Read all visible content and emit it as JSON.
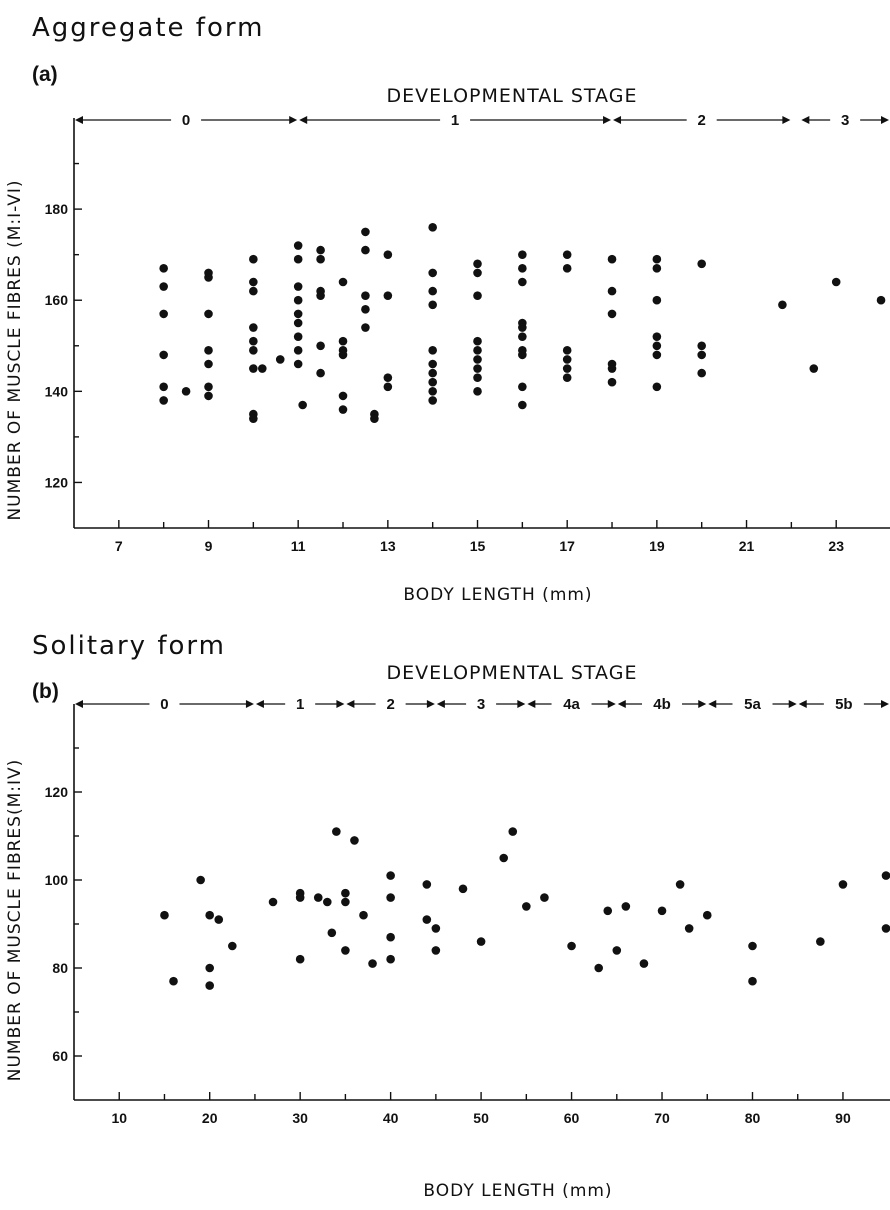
{
  "chart_data": [
    {
      "type": "scatter",
      "form_title": "Aggregate form",
      "panel_label": "(a)",
      "stage_title": "DEVELOPMENTAL STAGE",
      "xlabel": "BODY LENGTH (mm)",
      "ylabel": "NUMBER OF MUSCLE FIBRES (M:I-VI)",
      "xlim": [
        6,
        24.2
      ],
      "ylim": [
        110,
        200
      ],
      "xticks": [
        7,
        9,
        11,
        13,
        15,
        17,
        19,
        21,
        23
      ],
      "yticks": [
        120,
        140,
        160,
        180
      ],
      "grid": false,
      "stages": [
        {
          "label": "0",
          "from": 6,
          "to": 11
        },
        {
          "label": "1",
          "from": 11,
          "to": 18
        },
        {
          "label": "2",
          "from": 18,
          "to": 22
        },
        {
          "label": "3",
          "from": 22.2,
          "to": 24.2
        }
      ],
      "points": [
        [
          8,
          167
        ],
        [
          8,
          163
        ],
        [
          8,
          157
        ],
        [
          8,
          148
        ],
        [
          8,
          141
        ],
        [
          8,
          138
        ],
        [
          8.5,
          140
        ],
        [
          9,
          166
        ],
        [
          9,
          165
        ],
        [
          9,
          157
        ],
        [
          9,
          149
        ],
        [
          9,
          146
        ],
        [
          9,
          141
        ],
        [
          9,
          139
        ],
        [
          10,
          169
        ],
        [
          10,
          164
        ],
        [
          10,
          162
        ],
        [
          10,
          154
        ],
        [
          10,
          151
        ],
        [
          10,
          149
        ],
        [
          10,
          145
        ],
        [
          10,
          135
        ],
        [
          10,
          134
        ],
        [
          10.2,
          145
        ],
        [
          10.6,
          147
        ],
        [
          11,
          172
        ],
        [
          11,
          169
        ],
        [
          11,
          163
        ],
        [
          11,
          160
        ],
        [
          11,
          157
        ],
        [
          11,
          155
        ],
        [
          11,
          152
        ],
        [
          11,
          149
        ],
        [
          11,
          146
        ],
        [
          11.1,
          137
        ],
        [
          11.5,
          171
        ],
        [
          11.5,
          169
        ],
        [
          11.5,
          162
        ],
        [
          11.5,
          161
        ],
        [
          11.5,
          150
        ],
        [
          11.5,
          144
        ],
        [
          12,
          164
        ],
        [
          12,
          151
        ],
        [
          12,
          149
        ],
        [
          12,
          148
        ],
        [
          12,
          139
        ],
        [
          12,
          136
        ],
        [
          12.5,
          175
        ],
        [
          12.5,
          171
        ],
        [
          12.5,
          161
        ],
        [
          12.5,
          158
        ],
        [
          12.5,
          154
        ],
        [
          12.7,
          135
        ],
        [
          12.7,
          134
        ],
        [
          13,
          170
        ],
        [
          13,
          161
        ],
        [
          13,
          143
        ],
        [
          13,
          141
        ],
        [
          14,
          176
        ],
        [
          14,
          166
        ],
        [
          14,
          162
        ],
        [
          14,
          159
        ],
        [
          14,
          149
        ],
        [
          14,
          146
        ],
        [
          14,
          144
        ],
        [
          14,
          142
        ],
        [
          14,
          140
        ],
        [
          14,
          138
        ],
        [
          15,
          168
        ],
        [
          15,
          166
        ],
        [
          15,
          161
        ],
        [
          15,
          151
        ],
        [
          15,
          149
        ],
        [
          15,
          147
        ],
        [
          15,
          145
        ],
        [
          15,
          143
        ],
        [
          15,
          140
        ],
        [
          16,
          170
        ],
        [
          16,
          167
        ],
        [
          16,
          164
        ],
        [
          16,
          155
        ],
        [
          16,
          154
        ],
        [
          16,
          152
        ],
        [
          16,
          149
        ],
        [
          16,
          148
        ],
        [
          16,
          141
        ],
        [
          16,
          137
        ],
        [
          17,
          170
        ],
        [
          17,
          167
        ],
        [
          17,
          149
        ],
        [
          17,
          147
        ],
        [
          17,
          145
        ],
        [
          17,
          143
        ],
        [
          18,
          169
        ],
        [
          18,
          162
        ],
        [
          18,
          157
        ],
        [
          18,
          146
        ],
        [
          18,
          145
        ],
        [
          18,
          142
        ],
        [
          19,
          169
        ],
        [
          19,
          167
        ],
        [
          19,
          160
        ],
        [
          19,
          152
        ],
        [
          19,
          150
        ],
        [
          19,
          148
        ],
        [
          19,
          141
        ],
        [
          20,
          168
        ],
        [
          20,
          150
        ],
        [
          20,
          148
        ],
        [
          20,
          144
        ],
        [
          21.8,
          159
        ],
        [
          22.5,
          145
        ],
        [
          23,
          164
        ],
        [
          24,
          160
        ]
      ]
    },
    {
      "type": "scatter",
      "form_title": "Solitary form",
      "panel_label": "(b)",
      "stage_title": "DEVELOPMENTAL STAGE",
      "xlabel": "BODY LENGTH (mm)",
      "ylabel": "NUMBER OF MUSCLE FIBRES(M:IV)",
      "xlim": [
        5,
        95.2
      ],
      "ylim": [
        50,
        140
      ],
      "xticks": [
        10,
        20,
        30,
        40,
        50,
        60,
        70,
        80,
        90
      ],
      "yticks": [
        60,
        80,
        100,
        120
      ],
      "grid": false,
      "stages": [
        {
          "label": "0",
          "from": 5,
          "to": 25
        },
        {
          "label": "1",
          "from": 25,
          "to": 35
        },
        {
          "label": "2",
          "from": 35,
          "to": 45
        },
        {
          "label": "3",
          "from": 45,
          "to": 55
        },
        {
          "label": "4a",
          "from": 55,
          "to": 65
        },
        {
          "label": "4b",
          "from": 65,
          "to": 75
        },
        {
          "label": "5a",
          "from": 75,
          "to": 85
        },
        {
          "label": "5b",
          "from": 85,
          "to": 95.2
        }
      ],
      "points": [
        [
          15,
          92
        ],
        [
          16,
          77
        ],
        [
          19,
          100
        ],
        [
          20,
          92
        ],
        [
          20,
          80
        ],
        [
          20,
          76
        ],
        [
          21,
          91
        ],
        [
          22.5,
          85
        ],
        [
          27,
          95
        ],
        [
          30,
          97
        ],
        [
          30,
          96
        ],
        [
          30,
          82
        ],
        [
          32,
          96
        ],
        [
          33,
          95
        ],
        [
          33.5,
          88
        ],
        [
          34,
          111
        ],
        [
          35,
          97
        ],
        [
          35,
          95
        ],
        [
          35,
          84
        ],
        [
          36,
          109
        ],
        [
          37,
          92
        ],
        [
          38,
          81
        ],
        [
          40,
          101
        ],
        [
          40,
          96
        ],
        [
          40,
          87
        ],
        [
          40,
          82
        ],
        [
          44,
          99
        ],
        [
          44,
          91
        ],
        [
          45,
          89
        ],
        [
          45,
          84
        ],
        [
          48,
          98
        ],
        [
          50,
          86
        ],
        [
          52.5,
          105
        ],
        [
          53.5,
          111
        ],
        [
          55,
          94
        ],
        [
          57,
          96
        ],
        [
          60,
          85
        ],
        [
          63,
          80
        ],
        [
          64,
          93
        ],
        [
          65,
          84
        ],
        [
          66,
          94
        ],
        [
          68,
          81
        ],
        [
          70,
          93
        ],
        [
          72,
          99
        ],
        [
          73,
          89
        ],
        [
          75,
          92
        ],
        [
          80,
          85
        ],
        [
          80,
          77
        ],
        [
          87.5,
          86
        ],
        [
          90,
          99
        ],
        [
          95,
          101
        ],
        [
          95,
          89
        ]
      ]
    }
  ]
}
